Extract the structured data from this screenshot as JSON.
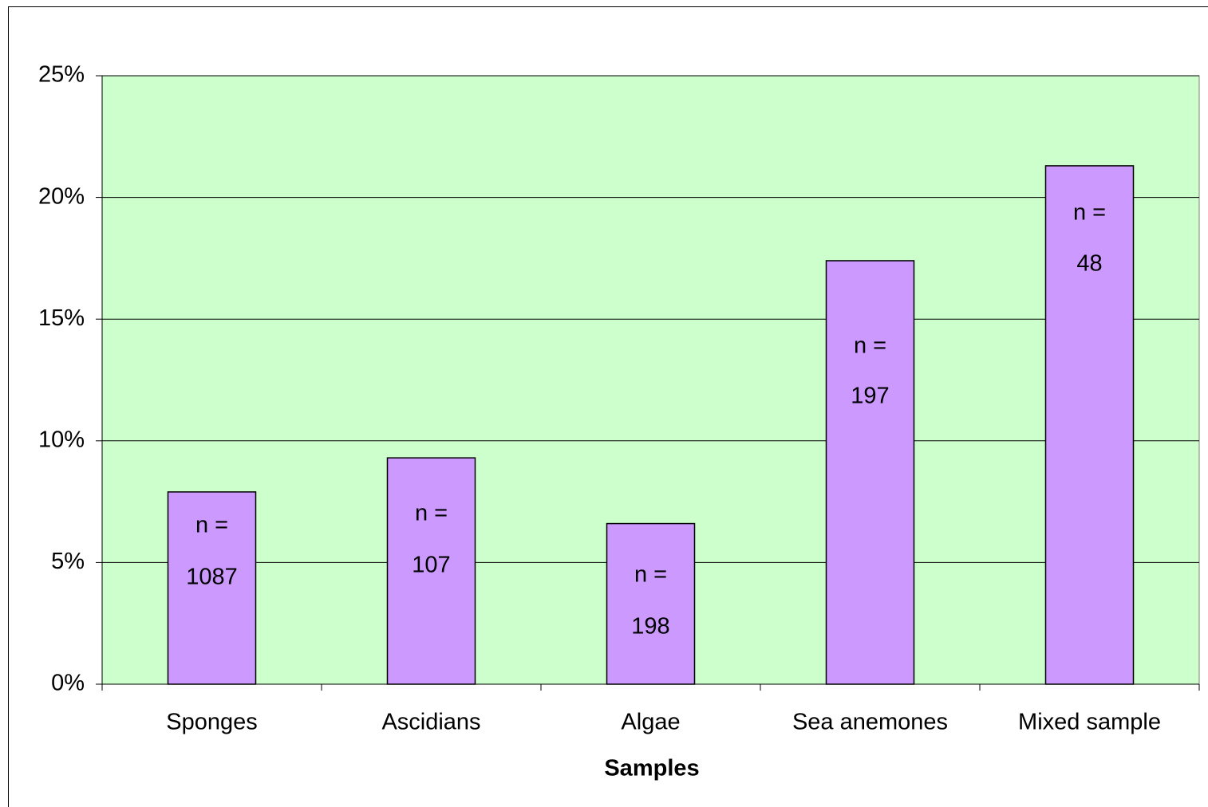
{
  "chart_data": {
    "type": "bar",
    "xlabel": "Samples",
    "categories": [
      "Sponges",
      "Ascidians",
      "Algae",
      "Sea anemones",
      "Mixed sample"
    ],
    "values": [
      7.9,
      9.3,
      6.6,
      17.4,
      21.3
    ],
    "color": "#cc99ff",
    "plot_background": "#ccffcc",
    "n_prefix": "n =",
    "n": [
      1087,
      107,
      198,
      197,
      48
    ],
    "ylim": [
      0,
      25
    ],
    "yticks": [
      {
        "value": 0,
        "label": "0%"
      },
      {
        "value": 5,
        "label": "5%"
      },
      {
        "value": 10,
        "label": "10%"
      },
      {
        "value": 15,
        "label": "15%"
      },
      {
        "value": 20,
        "label": "20%"
      },
      {
        "value": 25,
        "label": "25%"
      }
    ],
    "grid": true
  }
}
